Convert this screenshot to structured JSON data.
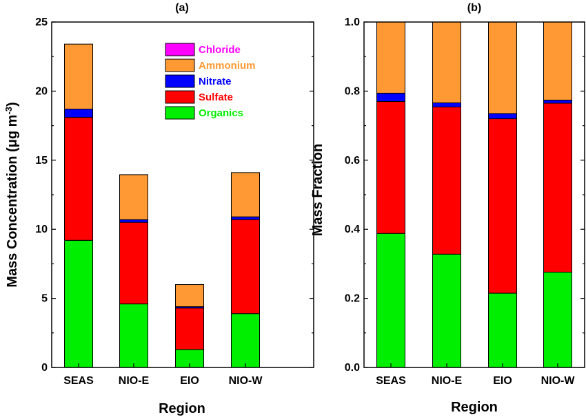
{
  "figure": {
    "legend": [
      {
        "label": "Chloride",
        "color": "#ff00ff"
      },
      {
        "label": "Ammonium",
        "color": "#ff9933"
      },
      {
        "label": "Nitrate",
        "color": "#0000ff"
      },
      {
        "label": "Sulfate",
        "color": "#ff0000"
      },
      {
        "label": "Organics",
        "color": "#00ee00"
      }
    ]
  },
  "chart_data": [
    {
      "type": "bar",
      "stacked": true,
      "title": "(a)",
      "xlabel": "Region",
      "ylabel": "Mass Concentration (μg m-3)",
      "ylabel_parts": {
        "main": "Mass Concentration (",
        "mu": "μ",
        "unit": "g m",
        "sup": "-3",
        "close": ")"
      },
      "categories": [
        "SEAS",
        "NIO-E",
        "EIO",
        "NIO-W"
      ],
      "ylim": [
        0,
        25
      ],
      "yticks": [
        0,
        5,
        10,
        15,
        20,
        25
      ],
      "ytick_labels": [
        "0",
        "5",
        "10",
        "15",
        "20",
        "25"
      ],
      "legend_position": "top-right",
      "series": [
        {
          "name": "Organics",
          "color": "#00ee00",
          "values": [
            9.2,
            4.6,
            1.3,
            3.9
          ]
        },
        {
          "name": "Sulfate",
          "color": "#ff0000",
          "values": [
            8.9,
            5.9,
            3.0,
            6.8
          ]
        },
        {
          "name": "Nitrate",
          "color": "#0000ff",
          "values": [
            0.6,
            0.2,
            0.1,
            0.2
          ]
        },
        {
          "name": "Ammonium",
          "color": "#ff9933",
          "values": [
            4.7,
            3.25,
            1.6,
            3.2
          ]
        },
        {
          "name": "Chloride",
          "color": "#ff00ff",
          "values": [
            0.0,
            0.0,
            0.0,
            0.0
          ]
        }
      ]
    },
    {
      "type": "bar",
      "stacked": true,
      "title": "(b)",
      "xlabel": "Region",
      "ylabel": "Mass Fraction",
      "categories": [
        "SEAS",
        "NIO-E",
        "EIO",
        "NIO-W"
      ],
      "ylim": [
        0,
        1.0
      ],
      "yticks": [
        0,
        0.2,
        0.4,
        0.6,
        0.8,
        1.0
      ],
      "ytick_labels": [
        "0.0",
        "0.2",
        "0.4",
        "0.6",
        "0.8",
        "1.0"
      ],
      "series": [
        {
          "name": "Organics",
          "color": "#00ee00",
          "values": [
            0.388,
            0.328,
            0.215,
            0.276
          ]
        },
        {
          "name": "Sulfate",
          "color": "#ff0000",
          "values": [
            0.382,
            0.426,
            0.505,
            0.489
          ]
        },
        {
          "name": "Nitrate",
          "color": "#0000ff",
          "values": [
            0.024,
            0.012,
            0.015,
            0.009
          ]
        },
        {
          "name": "Ammonium",
          "color": "#ff9933",
          "values": [
            0.206,
            0.234,
            0.265,
            0.226
          ]
        },
        {
          "name": "Chloride",
          "color": "#ff00ff",
          "values": [
            0.0,
            0.0,
            0.0,
            0.0
          ]
        }
      ]
    }
  ]
}
